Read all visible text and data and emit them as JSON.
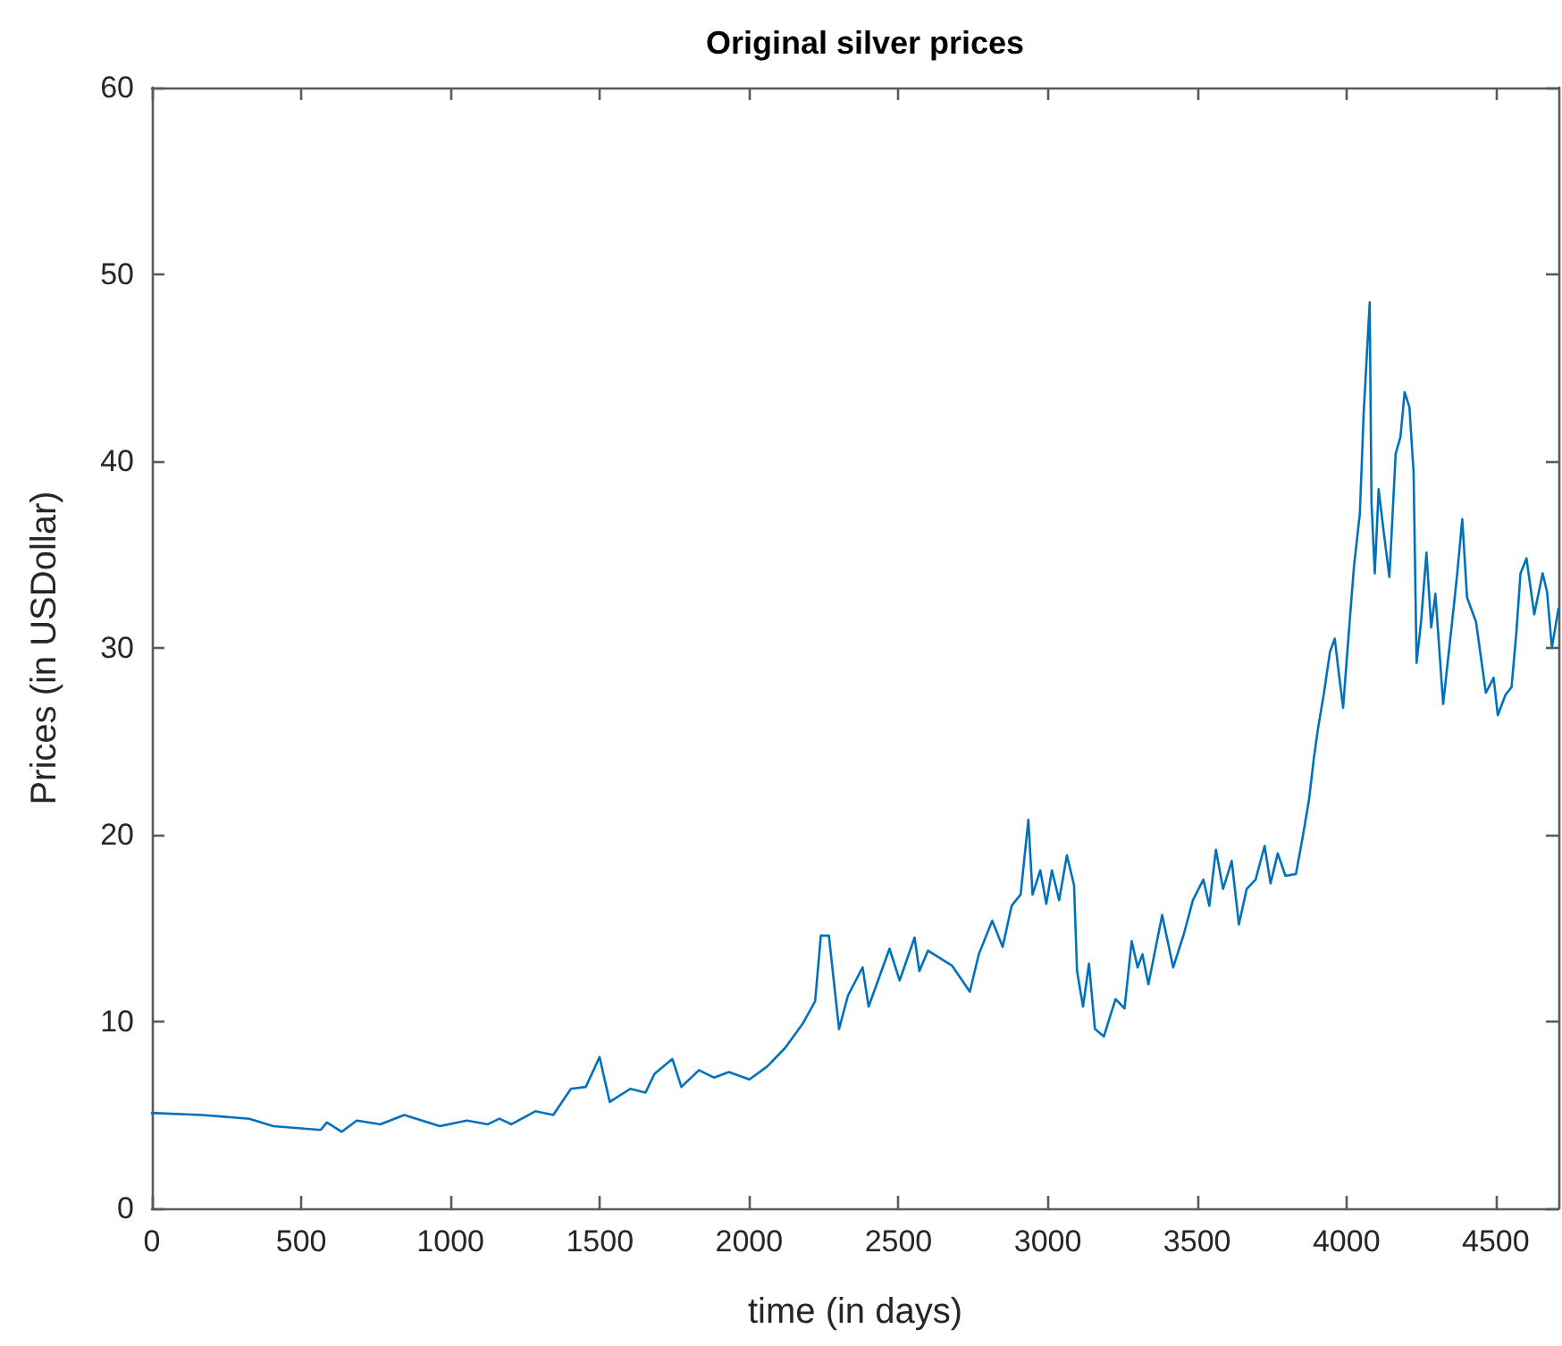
{
  "chart_data": {
    "type": "line",
    "title": "Original silver prices",
    "xlabel": "time (in days)",
    "ylabel": "Prices (in USDollar)",
    "x": [
      0,
      8,
      165,
      326,
      406,
      565,
      586,
      636,
      686,
      765,
      845,
      964,
      1055,
      1125,
      1164,
      1204,
      1284,
      1344,
      1403,
      1453,
      1499,
      1533,
      1602,
      1653,
      1683,
      1743,
      1773,
      1832,
      1882,
      1932,
      2001,
      2061,
      2121,
      2180,
      2221,
      2240,
      2267,
      2301,
      2331,
      2380,
      2400,
      2470,
      2504,
      2554,
      2570,
      2599,
      2679,
      2739,
      2769,
      2814,
      2849,
      2879,
      2909,
      2935,
      2949,
      2975,
      2995,
      3014,
      3038,
      3064,
      3088,
      3098,
      3118,
      3138,
      3158,
      3188,
      3207,
      3227,
      3257,
      3281,
      3301,
      3317,
      3337,
      3383,
      3420,
      3456,
      3486,
      3521,
      3541,
      3563,
      3587,
      3616,
      3640,
      3666,
      3696,
      3726,
      3746,
      3770,
      3796,
      3831,
      3855,
      3875,
      3891,
      3905,
      3925,
      3945,
      3961,
      3975,
      3989,
      4005,
      4025,
      4045,
      4058,
      4078,
      4084,
      4095,
      4108,
      4125,
      4144,
      4165,
      4181,
      4195,
      4211,
      4225,
      4235,
      4250,
      4268,
      4284,
      4298,
      4324,
      4354,
      4370,
      4388,
      4404,
      4434,
      4467,
      4493,
      4507,
      4533,
      4553,
      4569,
      4583,
      4603,
      4629,
      4657,
      4672,
      4688,
      4710
    ],
    "series": [
      {
        "color": "#0072bd",
        "values": [
          5.1,
          5.1,
          5.0,
          4.8,
          4.4,
          4.2,
          4.6,
          4.1,
          4.7,
          4.5,
          5.0,
          4.4,
          4.7,
          4.5,
          4.8,
          4.5,
          5.2,
          5.0,
          6.4,
          6.5,
          8.1,
          5.7,
          6.4,
          6.2,
          7.2,
          8.0,
          6.5,
          7.4,
          7.0,
          7.3,
          6.9,
          7.6,
          8.6,
          9.9,
          11.1,
          14.6,
          14.6,
          9.6,
          11.4,
          12.9,
          10.8,
          13.9,
          12.2,
          14.5,
          12.7,
          13.8,
          13.0,
          11.6,
          13.6,
          15.4,
          14.0,
          16.2,
          16.8,
          20.8,
          16.8,
          18.1,
          16.3,
          18.1,
          16.5,
          18.9,
          17.3,
          12.7,
          10.8,
          13.1,
          9.6,
          9.2,
          10.2,
          11.2,
          10.7,
          14.3,
          12.9,
          13.6,
          12.0,
          15.7,
          12.9,
          14.7,
          16.5,
          17.6,
          16.2,
          19.2,
          17.1,
          18.6,
          15.2,
          17.1,
          17.6,
          19.4,
          17.4,
          19.0,
          17.8,
          17.9,
          20.0,
          21.9,
          24.1,
          25.7,
          27.6,
          29.8,
          30.5,
          28.6,
          26.8,
          30.2,
          34.3,
          37.2,
          42.6,
          48.5,
          37.8,
          34.0,
          38.5,
          36.2,
          33.8,
          40.4,
          41.3,
          43.7,
          42.9,
          39.4,
          29.2,
          31.4,
          35.1,
          31.1,
          32.9,
          27.0,
          31.4,
          33.8,
          36.9,
          32.7,
          31.4,
          27.6,
          28.4,
          26.4,
          27.5,
          27.9,
          30.8,
          34.0,
          34.8,
          31.8,
          34.0,
          33.0,
          30.0,
          32.1
        ]
      }
    ],
    "xlim": [
      0,
      4710
    ],
    "xticks": [
      0,
      500,
      1000,
      1500,
      2000,
      2500,
      3000,
      3500,
      4000,
      4500
    ],
    "ylim": [
      0,
      60
    ],
    "yticks": [
      0,
      10,
      20,
      30,
      40,
      50,
      60
    ],
    "line_style": "solid"
  }
}
